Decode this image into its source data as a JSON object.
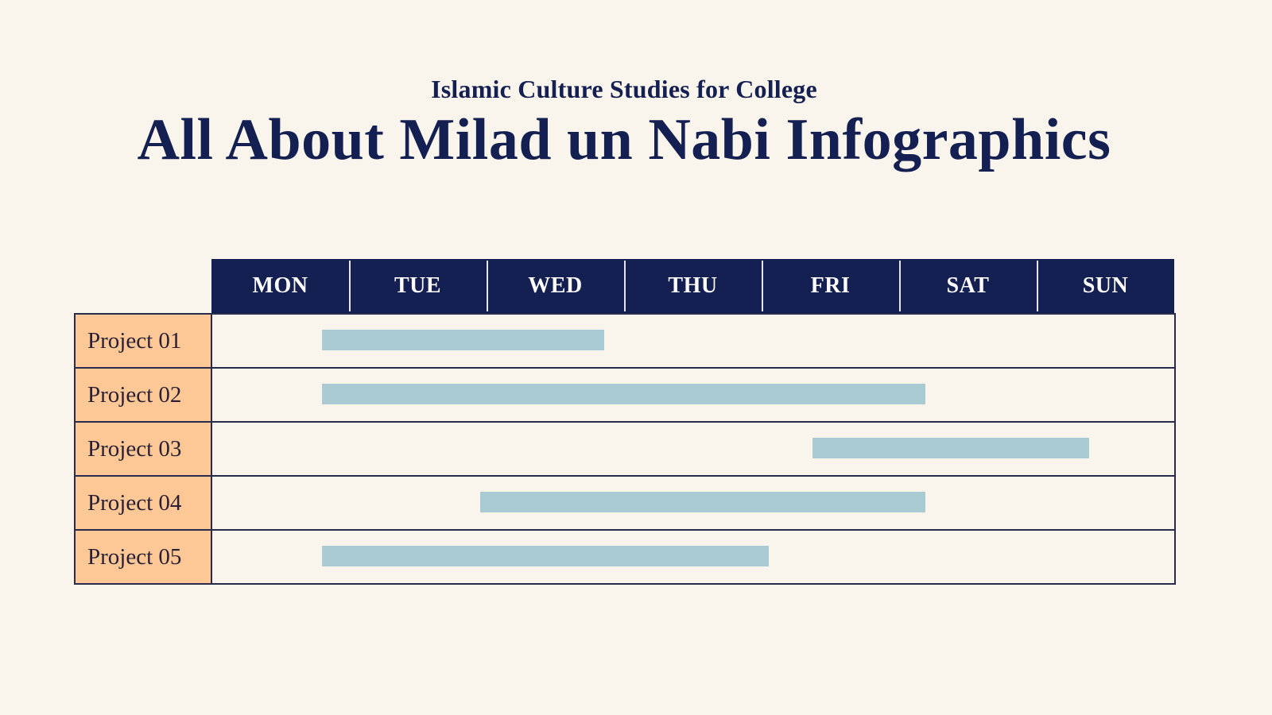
{
  "header": {
    "subtitle": "Islamic Culture Studies for College",
    "title": "All About Milad un Nabi Infographics"
  },
  "colors": {
    "background": "#faf5ec",
    "header_navy": "#141f52",
    "label_fill": "#fec896",
    "bar_fill": "#aacbd4",
    "grid_line": "#2a2a4a"
  },
  "days": [
    "MON",
    "TUE",
    "WED",
    "THU",
    "FRI",
    "SAT",
    "SUN"
  ],
  "projects": [
    {
      "label": "Project 01",
      "start": 0.8,
      "end": 2.85
    },
    {
      "label": "Project 02",
      "start": 0.8,
      "end": 5.19
    },
    {
      "label": "Project 03",
      "start": 4.37,
      "end": 6.38
    },
    {
      "label": "Project 04",
      "start": 1.95,
      "end": 5.19
    },
    {
      "label": "Project 05",
      "start": 0.8,
      "end": 4.05
    }
  ],
  "chart_data": {
    "type": "gantt",
    "title": "All About Milad un Nabi Infographics",
    "subtitle": "Islamic Culture Studies for College",
    "categories": [
      "Project 01",
      "Project 02",
      "Project 03",
      "Project 04",
      "Project 05"
    ],
    "x_axis": [
      "MON",
      "TUE",
      "WED",
      "THU",
      "FRI",
      "SAT",
      "SUN"
    ],
    "xlim": [
      0,
      7
    ],
    "units": "day columns (0 = start of MON, 7 = end of SUN)",
    "series": [
      {
        "name": "Project 01",
        "start": 0.8,
        "end": 2.85,
        "span": "MON (late) – WED (late)"
      },
      {
        "name": "Project 02",
        "start": 0.8,
        "end": 5.19,
        "span": "MON (late) – SAT (early)"
      },
      {
        "name": "Project 03",
        "start": 4.37,
        "end": 6.38,
        "span": "FRI (mid) – SUN (late)"
      },
      {
        "name": "Project 04",
        "start": 1.95,
        "end": 5.19,
        "span": "TUE (late) – SAT (early)"
      },
      {
        "name": "Project 05",
        "start": 0.8,
        "end": 4.05,
        "span": "MON (late) – THU (late)"
      }
    ],
    "grid": true,
    "legend": "none"
  }
}
